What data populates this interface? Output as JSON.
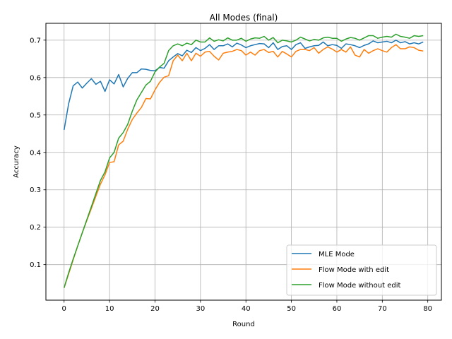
{
  "chart_data": {
    "type": "line",
    "title": "All Modes (final)",
    "xlabel": "Round",
    "ylabel": "Accuracy",
    "xlim": [
      -4,
      83
    ],
    "ylim": [
      0.005,
      0.745
    ],
    "xticks": [
      0,
      10,
      20,
      30,
      40,
      50,
      60,
      70,
      80
    ],
    "yticks": [
      0.1,
      0.2,
      0.3,
      0.4,
      0.5,
      0.6,
      0.7
    ],
    "ytick_labels": [
      "0.1",
      "0.2",
      "0.3",
      "0.4",
      "0.5",
      "0.6",
      "0.7"
    ],
    "grid": true,
    "legend_position": "lower-right",
    "series": [
      {
        "name": "MLE Mode",
        "color": "#1f77b4",
        "values": [
          0.46,
          0.53,
          0.578,
          0.588,
          0.572,
          0.585,
          0.597,
          0.582,
          0.59,
          0.563,
          0.594,
          0.583,
          0.608,
          0.575,
          0.598,
          0.613,
          0.613,
          0.623,
          0.622,
          0.619,
          0.618,
          0.627,
          0.625,
          0.645,
          0.655,
          0.664,
          0.658,
          0.673,
          0.667,
          0.68,
          0.672,
          0.678,
          0.688,
          0.675,
          0.685,
          0.685,
          0.69,
          0.682,
          0.692,
          0.687,
          0.68,
          0.685,
          0.688,
          0.691,
          0.69,
          0.68,
          0.693,
          0.675,
          0.683,
          0.685,
          0.675,
          0.688,
          0.693,
          0.678,
          0.682,
          0.685,
          0.686,
          0.695,
          0.685,
          0.688,
          0.686,
          0.678,
          0.69,
          0.688,
          0.685,
          0.68,
          0.686,
          0.69,
          0.698,
          0.693,
          0.695,
          0.697,
          0.693,
          0.7,
          0.693,
          0.696,
          0.69,
          0.693,
          0.69,
          0.695
        ]
      },
      {
        "name": "Flow Mode with edit",
        "color": "#ff7f0e",
        "values": [
          0.038,
          0.075,
          0.113,
          0.15,
          0.185,
          0.218,
          0.25,
          0.283,
          0.315,
          0.34,
          0.373,
          0.375,
          0.42,
          0.43,
          0.462,
          0.488,
          0.505,
          0.52,
          0.544,
          0.543,
          0.567,
          0.587,
          0.601,
          0.605,
          0.645,
          0.66,
          0.645,
          0.665,
          0.645,
          0.665,
          0.657,
          0.668,
          0.67,
          0.657,
          0.647,
          0.665,
          0.668,
          0.67,
          0.675,
          0.672,
          0.66,
          0.668,
          0.66,
          0.672,
          0.675,
          0.667,
          0.67,
          0.655,
          0.67,
          0.663,
          0.655,
          0.67,
          0.675,
          0.675,
          0.672,
          0.68,
          0.665,
          0.675,
          0.682,
          0.676,
          0.668,
          0.675,
          0.668,
          0.682,
          0.66,
          0.655,
          0.675,
          0.665,
          0.672,
          0.677,
          0.672,
          0.668,
          0.68,
          0.688,
          0.677,
          0.677,
          0.682,
          0.68,
          0.673,
          0.671
        ]
      },
      {
        "name": "Flow Mode without edit",
        "color": "#2ca02c",
        "values": [
          0.038,
          0.078,
          0.115,
          0.15,
          0.185,
          0.22,
          0.255,
          0.29,
          0.325,
          0.348,
          0.385,
          0.4,
          0.438,
          0.453,
          0.475,
          0.51,
          0.54,
          0.56,
          0.58,
          0.59,
          0.615,
          0.628,
          0.638,
          0.672,
          0.685,
          0.69,
          0.685,
          0.692,
          0.688,
          0.7,
          0.695,
          0.695,
          0.706,
          0.697,
          0.701,
          0.698,
          0.706,
          0.7,
          0.7,
          0.705,
          0.697,
          0.703,
          0.706,
          0.705,
          0.71,
          0.7,
          0.707,
          0.693,
          0.7,
          0.698,
          0.695,
          0.7,
          0.708,
          0.703,
          0.698,
          0.702,
          0.7,
          0.706,
          0.708,
          0.705,
          0.705,
          0.697,
          0.703,
          0.707,
          0.705,
          0.7,
          0.706,
          0.712,
          0.712,
          0.705,
          0.708,
          0.71,
          0.708,
          0.716,
          0.71,
          0.708,
          0.705,
          0.712,
          0.71,
          0.712
        ]
      }
    ]
  }
}
